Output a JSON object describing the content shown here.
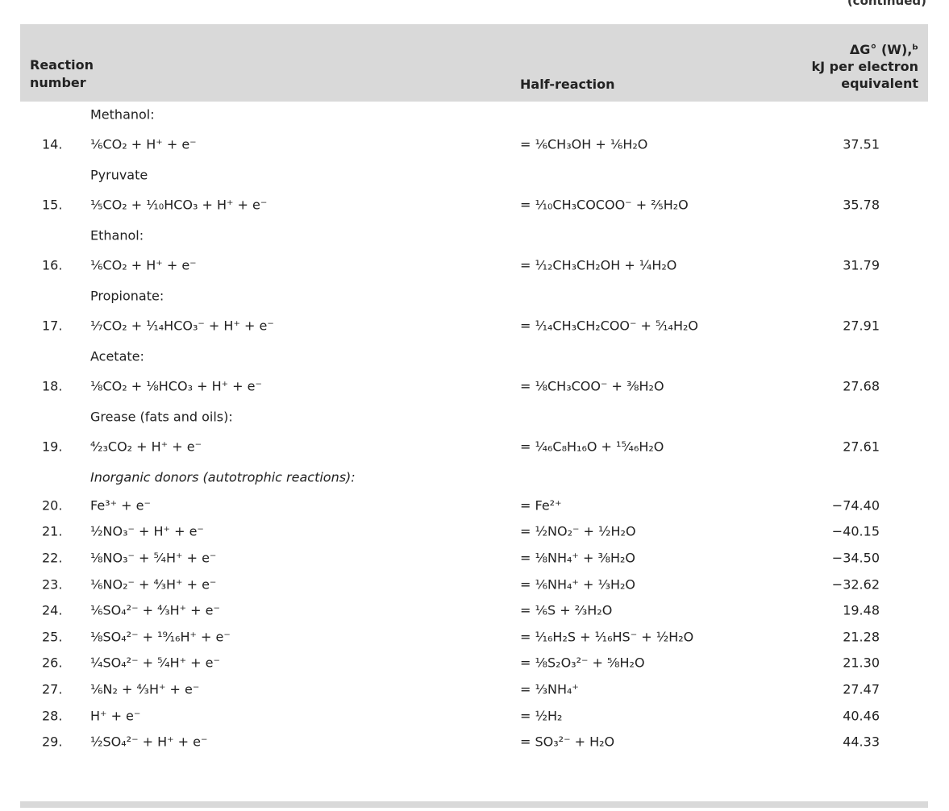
{
  "continued": "(continued)",
  "header": {
    "col1": [
      "Reaction",
      "number"
    ],
    "col2": "Half-reaction",
    "col3": [
      "ΔG° (W),ᵇ",
      "kJ per electron",
      "equivalent"
    ]
  },
  "rows": [
    {
      "label": "Methanol:"
    },
    {
      "num": "14.",
      "lhs": "⅙CO₂ + H⁺ + e⁻",
      "rhs": "= ⅙CH₃OH + ⅙H₂O",
      "value": "37.51"
    },
    {
      "label": "Pyruvate"
    },
    {
      "num": "15.",
      "lhs": "⅕CO₂ + ⅒HCO₃ + H⁺ + e⁻",
      "rhs": "= ⅒CH₃COCOO⁻ + ⅖H₂O",
      "value": "35.78"
    },
    {
      "label": "Ethanol:"
    },
    {
      "num": "16.",
      "lhs": "⅙CO₂ + H⁺ + e⁻",
      "rhs": "= ¹⁄₁₂CH₃CH₂OH + ¼H₂O",
      "value": "31.79"
    },
    {
      "label": "Propionate:"
    },
    {
      "num": "17.",
      "lhs": "⅐CO₂ + ¹⁄₁₄HCO₃⁻ + H⁺ + e⁻",
      "rhs": "= ¹⁄₁₄CH₃CH₂COO⁻ + ⁵⁄₁₄H₂O",
      "value": "27.91"
    },
    {
      "label": "Acetate:"
    },
    {
      "num": "18.",
      "lhs": "⅛CO₂ + ⅛HCO₃ + H⁺ + e⁻",
      "rhs": "= ⅛CH₃COO⁻ + ⅜H₂O",
      "value": "27.68"
    },
    {
      "label": "Grease (fats and oils):"
    },
    {
      "num": "19.",
      "lhs": "⁴⁄₂₃CO₂ + H⁺ + e⁻",
      "rhs": "= ¹⁄₄₆C₈H₁₆O + ¹⁵⁄₄₆H₂O",
      "value": "27.61"
    },
    {
      "label": "Inorganic donors (autotrophic reactions):",
      "italic": true
    },
    {
      "num": "20.",
      "lhs": "Fe³⁺ + e⁻",
      "rhs": "= Fe²⁺",
      "value": "−74.40"
    },
    {
      "num": "21.",
      "lhs": "½NO₃⁻ + H⁺ + e⁻",
      "rhs": "= ½NO₂⁻ + ½H₂O",
      "value": "−40.15"
    },
    {
      "num": "22.",
      "lhs": "⅛NO₃⁻ + ⁵⁄₄H⁺ + e⁻",
      "rhs": "= ⅛NH₄⁺ + ⅜H₂O",
      "value": "−34.50"
    },
    {
      "num": "23.",
      "lhs": "⅙NO₂⁻ + ⁴⁄₃H⁺ + e⁻",
      "rhs": "= ⅙NH₄⁺ + ⅓H₂O",
      "value": "−32.62"
    },
    {
      "num": "24.",
      "lhs": "⅙SO₄²⁻ + ⁴⁄₃H⁺ + e⁻",
      "rhs": "= ⅙S + ⅔H₂O",
      "value": "19.48"
    },
    {
      "num": "25.",
      "lhs": "⅛SO₄²⁻ + ¹⁹⁄₁₆H⁺ + e⁻",
      "rhs": "= ¹⁄₁₆H₂S + ¹⁄₁₆HS⁻ + ½H₂O",
      "value": "21.28"
    },
    {
      "num": "26.",
      "lhs": "¼SO₄²⁻ + ⁵⁄₄H⁺ + e⁻",
      "rhs": "= ⅛S₂O₃²⁻ + ⅝H₂O",
      "value": "21.30"
    },
    {
      "num": "27.",
      "lhs": "⅙N₂ + ⁴⁄₃H⁺ + e⁻",
      "rhs": "= ⅓NH₄⁺",
      "value": "27.47"
    },
    {
      "num": "28.",
      "lhs": "H⁺ + e⁻",
      "rhs": "= ½H₂",
      "value": "40.46"
    },
    {
      "num": "29.",
      "lhs": "½SO₄²⁻ + H⁺ + e⁻",
      "rhs": "= SO₃²⁻ + H₂O",
      "value": "44.33"
    }
  ]
}
